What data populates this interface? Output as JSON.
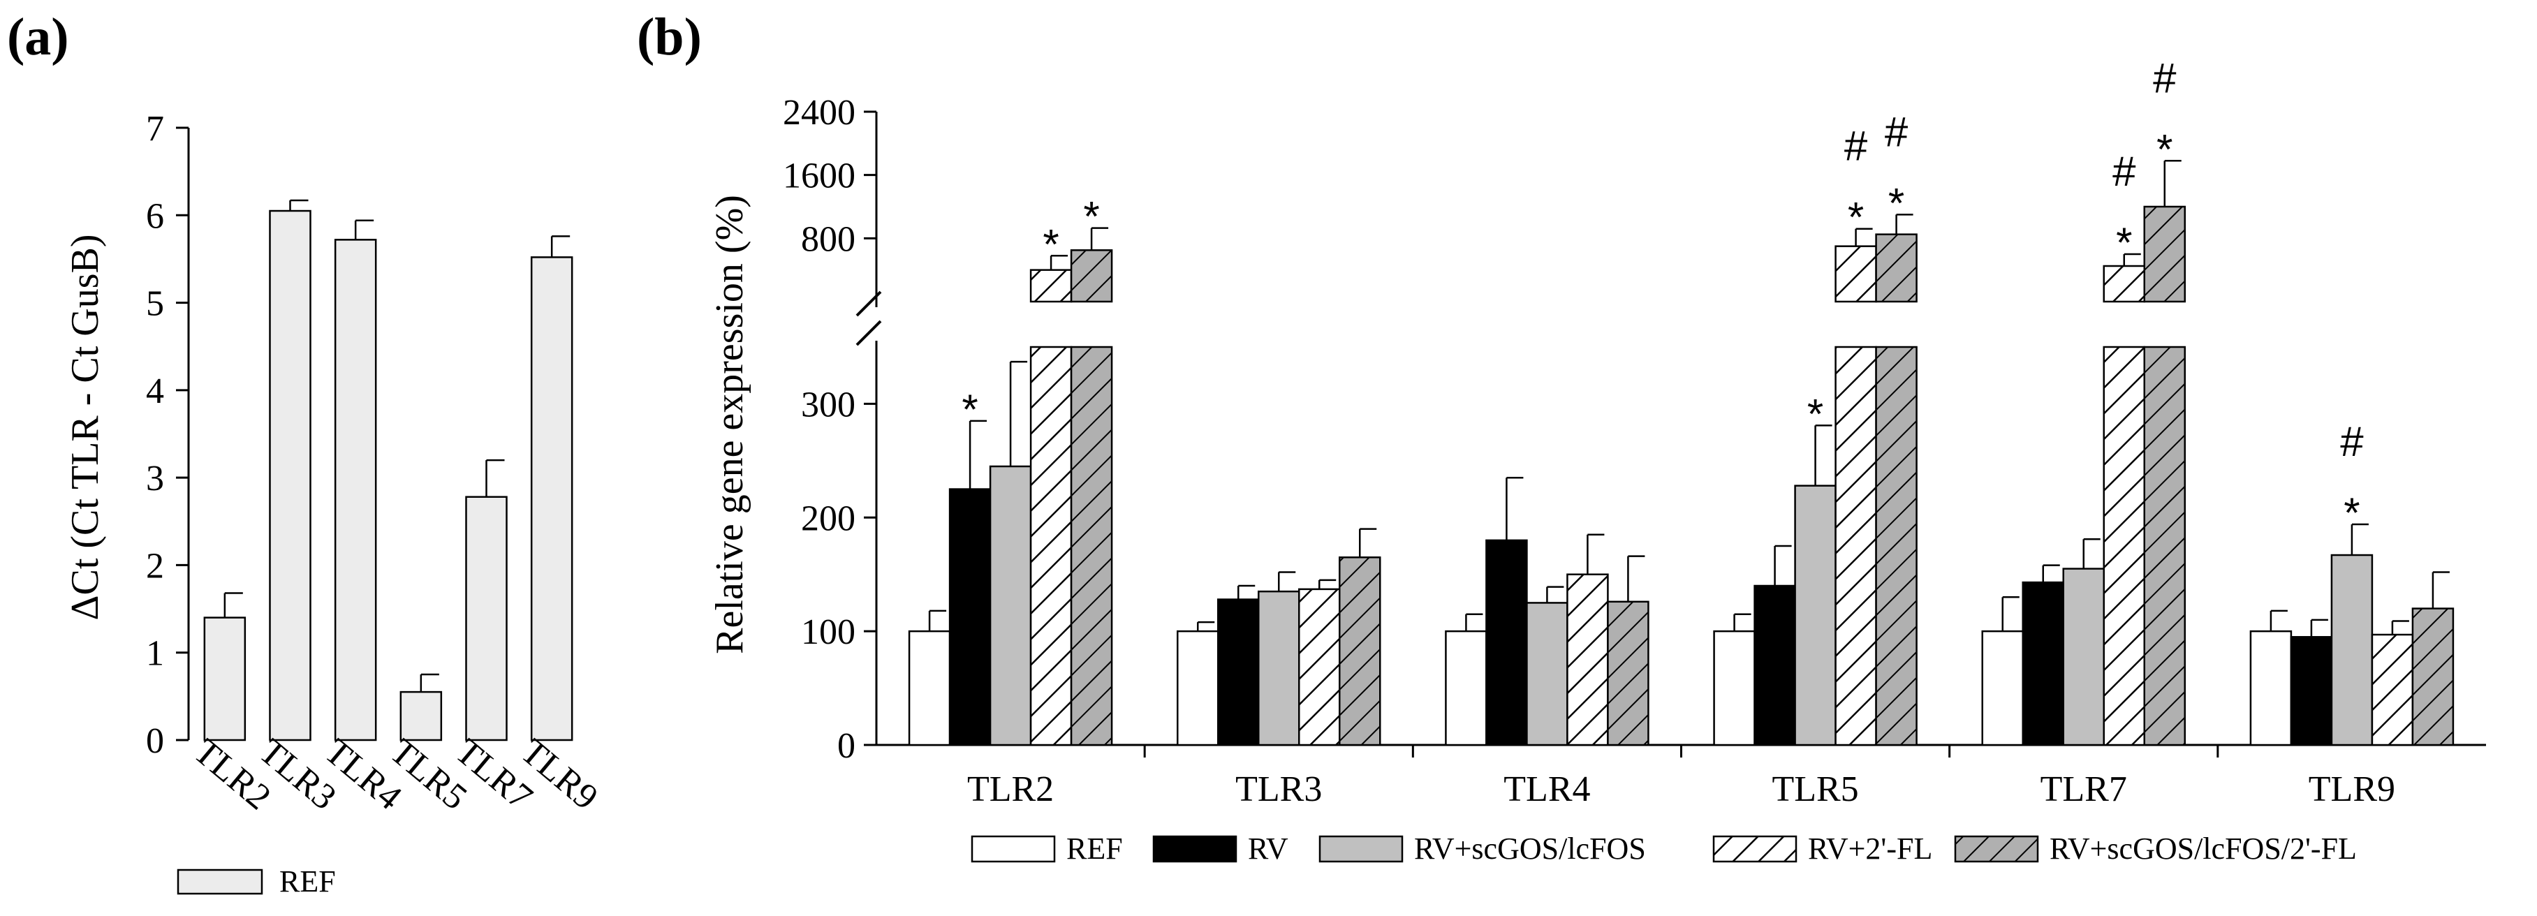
{
  "chart_data": [
    {
      "panel": "(a)",
      "type": "bar",
      "categories": [
        "TLR2",
        "TLR3",
        "TLR4",
        "TLR5",
        "TLR7",
        "TLR9"
      ],
      "series": [
        {
          "name": "REF",
          "values": [
            1.4,
            6.05,
            5.72,
            0.55,
            2.78,
            5.52
          ],
          "errors": [
            0.28,
            0.12,
            0.22,
            0.2,
            0.42,
            0.24
          ]
        }
      ],
      "ylabel": "ΔCt (Ct TLR - Ct GusB)",
      "xlabel": "",
      "ylim": [
        0,
        7
      ],
      "yticks": [
        0,
        1,
        2,
        3,
        4,
        5,
        6,
        7
      ],
      "legend": [
        "REF"
      ],
      "legend_position": "bottom-left"
    },
    {
      "panel": "(b)",
      "type": "bar",
      "broken_axis": true,
      "categories": [
        "TLR2",
        "TLR3",
        "TLR4",
        "TLR5",
        "TLR7",
        "TLR9"
      ],
      "series": [
        {
          "name": "REF",
          "values": [
            100,
            100,
            100,
            100,
            100,
            100
          ],
          "errors": [
            18,
            8,
            15,
            15,
            30,
            18
          ]
        },
        {
          "name": "RV",
          "values": [
            225,
            128,
            180,
            140,
            143,
            95
          ],
          "errors": [
            60,
            12,
            55,
            35,
            15,
            15
          ]
        },
        {
          "name": "RV+scGOS/lcFOS",
          "values": [
            245,
            135,
            125,
            228,
            155,
            167
          ],
          "errors": [
            92,
            17,
            14,
            53,
            26,
            27
          ]
        },
        {
          "name": "RV+2'-FL",
          "values": [
            400,
            137,
            150,
            700,
            450,
            97
          ],
          "errors": [
            180,
            8,
            35,
            220,
            150,
            12
          ]
        },
        {
          "name": "RV+scGOS/lcFOS/2'-FL",
          "values": [
            650,
            165,
            126,
            850,
            1200,
            120
          ],
          "errors": [
            280,
            25,
            40,
            250,
            580,
            32
          ]
        }
      ],
      "ylabel": "Relative gene expression (%)",
      "xlabel": "",
      "ylim_lower": [
        0,
        350
      ],
      "yticks_lower": [
        0,
        100,
        200,
        300
      ],
      "ylim_upper": [
        0,
        2400
      ],
      "yticks_upper": [
        800,
        1600,
        2400
      ],
      "legend": [
        "REF",
        "RV",
        "RV+scGOS/lcFOS",
        "RV+2'-FL",
        "RV+scGOS/lcFOS/2'-FL"
      ],
      "legend_position": "bottom",
      "annotations": [
        {
          "category": "TLR2",
          "series": "RV",
          "text": "*"
        },
        {
          "category": "TLR2",
          "series": "RV+2'-FL",
          "text": "*"
        },
        {
          "category": "TLR2",
          "series": "RV+scGOS/lcFOS/2'-FL",
          "text": "*"
        },
        {
          "category": "TLR5",
          "series": "RV+scGOS/lcFOS",
          "text": "*"
        },
        {
          "category": "TLR5",
          "series": "RV+2'-FL",
          "text": "*"
        },
        {
          "category": "TLR5",
          "series": "RV+2'-FL",
          "text": "#"
        },
        {
          "category": "TLR5",
          "series": "RV+scGOS/lcFOS/2'-FL",
          "text": "*"
        },
        {
          "category": "TLR5",
          "series": "RV+scGOS/lcFOS/2'-FL",
          "text": "#"
        },
        {
          "category": "TLR7",
          "series": "RV+2'-FL",
          "text": "*"
        },
        {
          "category": "TLR7",
          "series": "RV+2'-FL",
          "text": "#"
        },
        {
          "category": "TLR7",
          "series": "RV+scGOS/lcFOS/2'-FL",
          "text": "*"
        },
        {
          "category": "TLR7",
          "series": "RV+scGOS/lcFOS/2'-FL",
          "text": "#"
        },
        {
          "category": "TLR9",
          "series": "RV+scGOS/lcFOS",
          "text": "*"
        },
        {
          "category": "TLR9",
          "series": "RV+scGOS/lcFOS",
          "text": "#"
        }
      ]
    }
  ]
}
